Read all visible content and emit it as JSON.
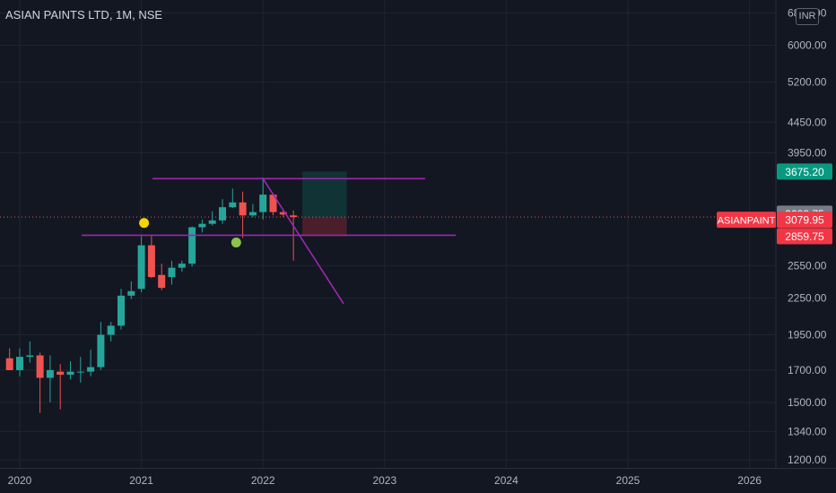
{
  "chart_title": "ASIAN PAINTS LTD, 1M, NSE",
  "currency": "INR",
  "colors": {
    "background": "#131722",
    "grid": "#1f2430",
    "up": "#26a69a",
    "down": "#ef5350",
    "trendline": "#9c27b0",
    "last_price_line": "#ef5350",
    "target_tag": "#089981",
    "stop_tag": "#f23645",
    "marker_yellow": "#f5d400",
    "marker_green": "#8bc34a"
  },
  "chart_data": {
    "type": "candlestick",
    "symbol": "ASIANPAINT",
    "interval": "1M",
    "exchange": "NSE",
    "y_scale": "log",
    "ylim": [
      1200,
      6800
    ],
    "y_ticks": [
      "6800.00",
      "6000.00",
      "5200.00",
      "4450.00",
      "3950.00",
      "2550.00",
      "2250.00",
      "1950.00",
      "1700.00",
      "1500.00",
      "1340.00",
      "1200.00"
    ],
    "x_ticks": [
      "2020",
      "2021",
      "2022",
      "2023",
      "2024",
      "2025",
      "2026"
    ],
    "x_range": [
      "2019-12",
      "2026-07"
    ],
    "candles": [
      {
        "date": "2019-12",
        "o": 1780,
        "h": 1850,
        "l": 1700,
        "c": 1700
      },
      {
        "date": "2020-01",
        "o": 1700,
        "h": 1850,
        "l": 1660,
        "c": 1790
      },
      {
        "date": "2020-02",
        "o": 1790,
        "h": 1900,
        "l": 1750,
        "c": 1800
      },
      {
        "date": "2020-03",
        "o": 1800,
        "h": 1820,
        "l": 1440,
        "c": 1650
      },
      {
        "date": "2020-04",
        "o": 1650,
        "h": 1800,
        "l": 1500,
        "c": 1700
      },
      {
        "date": "2020-05",
        "o": 1690,
        "h": 1740,
        "l": 1460,
        "c": 1670
      },
      {
        "date": "2020-06",
        "o": 1670,
        "h": 1760,
        "l": 1640,
        "c": 1690
      },
      {
        "date": "2020-07",
        "o": 1690,
        "h": 1790,
        "l": 1620,
        "c": 1690
      },
      {
        "date": "2020-08",
        "o": 1690,
        "h": 1840,
        "l": 1660,
        "c": 1720
      },
      {
        "date": "2020-09",
        "o": 1720,
        "h": 2050,
        "l": 1700,
        "c": 1950
      },
      {
        "date": "2020-10",
        "o": 1950,
        "h": 2050,
        "l": 1900,
        "c": 2020
      },
      {
        "date": "2020-11",
        "o": 2020,
        "h": 2330,
        "l": 1990,
        "c": 2270
      },
      {
        "date": "2020-12",
        "o": 2270,
        "h": 2400,
        "l": 2240,
        "c": 2310
      },
      {
        "date": "2021-01",
        "o": 2330,
        "h": 2860,
        "l": 2300,
        "c": 2760
      },
      {
        "date": "2021-02",
        "o": 2760,
        "h": 2860,
        "l": 2430,
        "c": 2440
      },
      {
        "date": "2021-03",
        "o": 2460,
        "h": 2570,
        "l": 2320,
        "c": 2340
      },
      {
        "date": "2021-04",
        "o": 2440,
        "h": 2600,
        "l": 2370,
        "c": 2530
      },
      {
        "date": "2021-05",
        "o": 2530,
        "h": 2600,
        "l": 2490,
        "c": 2570
      },
      {
        "date": "2021-06",
        "o": 2570,
        "h": 2970,
        "l": 2540,
        "c": 2960
      },
      {
        "date": "2021-07",
        "o": 2960,
        "h": 3050,
        "l": 2900,
        "c": 3000
      },
      {
        "date": "2021-08",
        "o": 3000,
        "h": 3150,
        "l": 2980,
        "c": 3040
      },
      {
        "date": "2021-09",
        "o": 3040,
        "h": 3300,
        "l": 3000,
        "c": 3200
      },
      {
        "date": "2021-10",
        "o": 3200,
        "h": 3440,
        "l": 3190,
        "c": 3260
      },
      {
        "date": "2021-11",
        "o": 3260,
        "h": 3400,
        "l": 2840,
        "c": 3100
      },
      {
        "date": "2021-12",
        "o": 3100,
        "h": 3240,
        "l": 3080,
        "c": 3140
      },
      {
        "date": "2022-01",
        "o": 3140,
        "h": 3590,
        "l": 3050,
        "c": 3360
      },
      {
        "date": "2022-02",
        "o": 3360,
        "h": 3380,
        "l": 3100,
        "c": 3140
      },
      {
        "date": "2022-03",
        "o": 3140,
        "h": 3170,
        "l": 3080,
        "c": 3110
      },
      {
        "date": "2022-04",
        "o": 3100,
        "h": 3160,
        "l": 2600,
        "c": 3080
      }
    ],
    "price_tags": [
      {
        "price": 3675.2,
        "label": "3675.20",
        "kind": "target"
      },
      {
        "price": 3088.75,
        "label": "3088.75",
        "kind": "neutral"
      },
      {
        "price": 3079.95,
        "label": "3079.95",
        "kind": "last",
        "symbol": "ASIANPAINT"
      },
      {
        "price": 2859.75,
        "label": "2859.75",
        "kind": "stop"
      }
    ]
  }
}
